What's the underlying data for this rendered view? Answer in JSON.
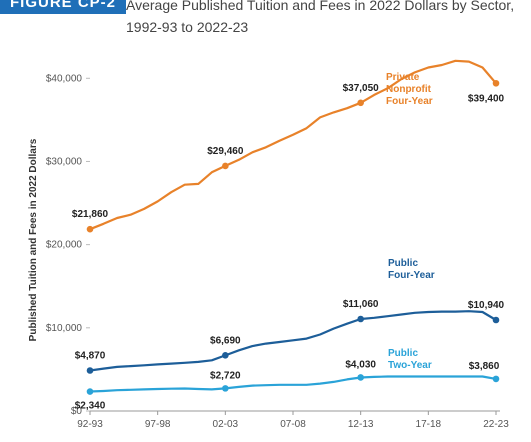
{
  "figure_tag": "FIGURE CP-2",
  "title_line1": "Average Published Tuition and Fees in 2022 Dollars by Sector,",
  "title_line2": "1992-93 to 2022-23",
  "colors": {
    "private": "#e8822a",
    "public4": "#1d5e99",
    "public2": "#2aa3d8",
    "badge": "#1f6fb8"
  },
  "chart_data": {
    "type": "line",
    "title": "Average Published Tuition and Fees in 2022 Dollars by Sector, 1992-93 to 2022-23",
    "ylabel": "Published Tuition and Fees in 2022 Dollars",
    "xlabel": "",
    "ylim": [
      0,
      44000
    ],
    "yticks": [
      0,
      10000,
      20000,
      30000,
      40000
    ],
    "ytick_labels": [
      "$0",
      "$10,000",
      "$20,000",
      "$30,000",
      "$40,000"
    ],
    "x": [
      "92-93",
      "93-94",
      "94-95",
      "95-96",
      "96-97",
      "97-98",
      "98-99",
      "99-00",
      "00-01",
      "01-02",
      "02-03",
      "03-04",
      "04-05",
      "05-06",
      "06-07",
      "07-08",
      "08-09",
      "09-10",
      "10-11",
      "11-12",
      "12-13",
      "13-14",
      "14-15",
      "15-16",
      "16-17",
      "17-18",
      "18-19",
      "19-20",
      "20-21",
      "21-22",
      "22-23"
    ],
    "xtick_labels": [
      "92-93",
      "97-98",
      "02-03",
      "07-08",
      "12-13",
      "17-18",
      "22-23"
    ],
    "xtick_indices": [
      0,
      5,
      10,
      15,
      20,
      25,
      30
    ],
    "grid": false,
    "series": [
      {
        "name": "Private Nonprofit Four-Year",
        "label_lines": [
          "Private",
          "Nonprofit",
          "Four-Year"
        ],
        "values": [
          21860,
          22500,
          23200,
          23600,
          24300,
          25200,
          26300,
          27200,
          27300,
          28700,
          29460,
          30200,
          31100,
          31700,
          32500,
          33200,
          34000,
          35300,
          35900,
          36400,
          37050,
          38000,
          38800,
          39900,
          40700,
          41300,
          41600,
          42100,
          42000,
          41300,
          39400
        ],
        "labels": [
          {
            "i": 0,
            "text": "$21,860"
          },
          {
            "i": 10,
            "text": "$29,460"
          },
          {
            "i": 20,
            "text": "$37,050"
          },
          {
            "i": 30,
            "text": "$39,400"
          }
        ]
      },
      {
        "name": "Public Four-Year",
        "label_lines": [
          "Public",
          "Four-Year"
        ],
        "values": [
          4870,
          5100,
          5300,
          5400,
          5500,
          5600,
          5700,
          5800,
          5900,
          6100,
          6690,
          7300,
          7800,
          8100,
          8300,
          8500,
          8700,
          9200,
          9900,
          10500,
          11060,
          11200,
          11400,
          11600,
          11800,
          11900,
          11950,
          11950,
          12000,
          11900,
          10940
        ],
        "labels": [
          {
            "i": 0,
            "text": "$4,870"
          },
          {
            "i": 10,
            "text": "$6,690"
          },
          {
            "i": 20,
            "text": "$11,060"
          },
          {
            "i": 30,
            "text": "$10,940"
          }
        ]
      },
      {
        "name": "Public Two-Year",
        "label_lines": [
          "Public",
          "Two-Year"
        ],
        "values": [
          2340,
          2400,
          2500,
          2550,
          2600,
          2650,
          2680,
          2700,
          2650,
          2600,
          2720,
          2900,
          3050,
          3100,
          3150,
          3150,
          3150,
          3300,
          3500,
          3800,
          4030,
          4100,
          4150,
          4150,
          4150,
          4150,
          4150,
          4150,
          4150,
          4150,
          3860
        ],
        "labels": [
          {
            "i": 0,
            "text": "$2,340"
          },
          {
            "i": 10,
            "text": "$2,720"
          },
          {
            "i": 20,
            "text": "$4,030"
          },
          {
            "i": 30,
            "text": "$3,860"
          }
        ]
      }
    ]
  }
}
